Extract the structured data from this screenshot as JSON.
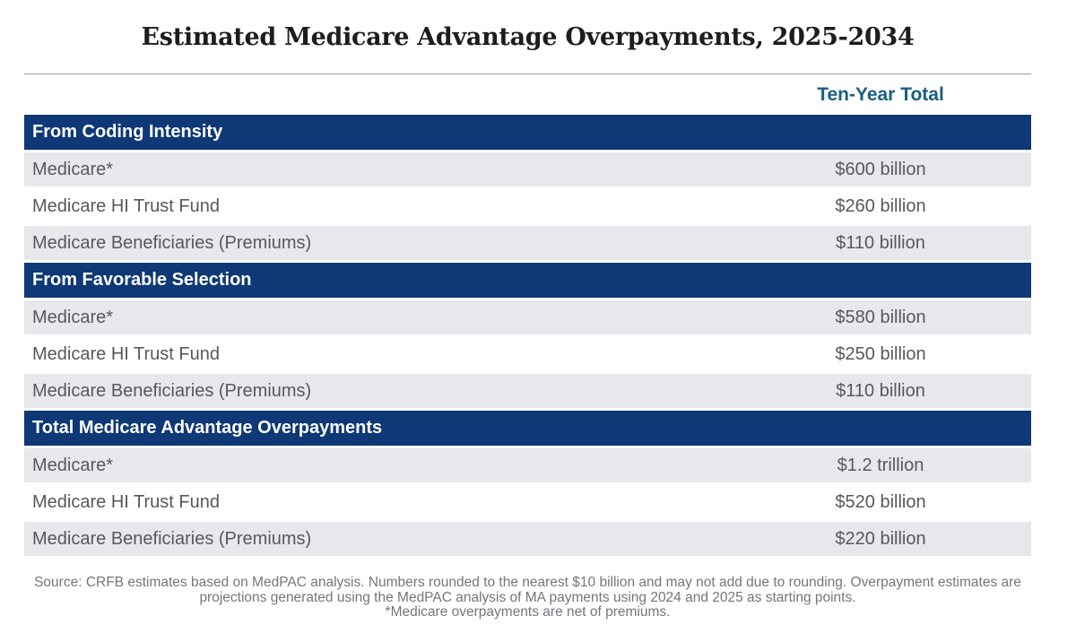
{
  "chart_data": {
    "type": "table",
    "title": "Estimated Medicare Advantage Overpayments, 2025-2034",
    "column_header": "Ten-Year Total",
    "sections": [
      {
        "header": "From Coding Intensity",
        "rows": [
          {
            "label": "Medicare*",
            "value": "$600 billion"
          },
          {
            "label": "Medicare HI Trust Fund",
            "value": "$260 billion"
          },
          {
            "label": "Medicare Beneficiaries (Premiums)",
            "value": "$110 billion"
          }
        ]
      },
      {
        "header": "From Favorable Selection",
        "rows": [
          {
            "label": "Medicare*",
            "value": "$580 billion"
          },
          {
            "label": "Medicare HI Trust Fund",
            "value": "$250 billion"
          },
          {
            "label": "Medicare Beneficiaries (Premiums)",
            "value": "$110 billion"
          }
        ]
      },
      {
        "header": "Total Medicare Advantage Overpayments",
        "rows": [
          {
            "label": "Medicare*",
            "value": "$1.2 trillion"
          },
          {
            "label": "Medicare HI Trust Fund",
            "value": "$520 billion"
          },
          {
            "label": "Medicare Beneficiaries (Premiums)",
            "value": "$220 billion"
          }
        ]
      }
    ],
    "footnotes": [
      "Source: CRFB estimates based on MedPAC analysis. Numbers rounded to the nearest $10 billion and may not add due to rounding. Overpayment estimates are",
      "projections generated using the MedPAC analysis of MA payments using 2024 and 2025 as starting points.",
      "*Medicare overpayments are net of premiums."
    ],
    "colors": {
      "section_header_bg": "#0e3876",
      "row_alt_bg": "#e7e8ec",
      "column_header_text": "#1a5e80",
      "row_text": "#57585c",
      "footnote_text": "#75767a",
      "title_text": "#1d1d1f"
    },
    "layout": {
      "grid": false,
      "legend": false
    }
  }
}
